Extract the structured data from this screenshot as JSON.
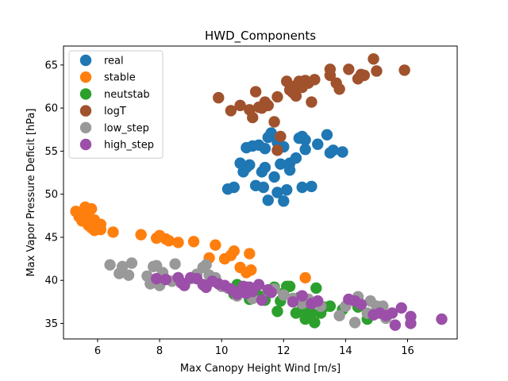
{
  "chart_data": {
    "type": "scatter",
    "title": "HWD_Components",
    "xlabel": "Max Canopy Height Wind [m/s]",
    "ylabel": "Max Vapor Pressure Deficit [hPa]",
    "xlim": [
      4.9,
      17.6
    ],
    "ylim": [
      33.2,
      67.2
    ],
    "xticks": [
      6,
      8,
      10,
      12,
      14,
      16
    ],
    "yticks": [
      35,
      40,
      45,
      50,
      55,
      60,
      65
    ],
    "grid": false,
    "legend_position": "top-left",
    "series": [
      {
        "name": "real",
        "color": "#1f77b4",
        "points": [
          [
            10.2,
            50.6
          ],
          [
            10.4,
            50.8
          ],
          [
            10.6,
            53.6
          ],
          [
            10.7,
            52.6
          ],
          [
            10.8,
            53.1
          ],
          [
            10.8,
            55.4
          ],
          [
            10.9,
            53.4
          ],
          [
            11.0,
            55.6
          ],
          [
            11.1,
            51.0
          ],
          [
            11.2,
            55.7
          ],
          [
            11.3,
            52.6
          ],
          [
            11.35,
            50.8
          ],
          [
            11.4,
            53.1
          ],
          [
            11.4,
            55.3
          ],
          [
            11.5,
            56.6
          ],
          [
            11.5,
            49.3
          ],
          [
            11.6,
            57.1
          ],
          [
            11.7,
            52.0
          ],
          [
            11.8,
            50.2
          ],
          [
            11.8,
            56.0
          ],
          [
            11.9,
            53.5
          ],
          [
            12.0,
            49.2
          ],
          [
            12.0,
            55.5
          ],
          [
            12.1,
            50.5
          ],
          [
            12.2,
            53.6
          ],
          [
            12.2,
            52.8
          ],
          [
            12.4,
            54.2
          ],
          [
            12.5,
            56.5
          ],
          [
            12.6,
            56.7
          ],
          [
            12.6,
            50.8
          ],
          [
            12.7,
            56.3
          ],
          [
            12.7,
            55.2
          ],
          [
            12.9,
            50.9
          ],
          [
            13.1,
            55.8
          ],
          [
            13.4,
            56.9
          ],
          [
            13.5,
            54.8
          ],
          [
            13.6,
            55.1
          ],
          [
            13.9,
            54.9
          ]
        ]
      },
      {
        "name": "stable",
        "color": "#ff7f0e",
        "points": [
          [
            5.3,
            48.0
          ],
          [
            5.4,
            47.4
          ],
          [
            5.5,
            46.9
          ],
          [
            5.6,
            48.5
          ],
          [
            5.7,
            47.6
          ],
          [
            5.7,
            46.4
          ],
          [
            5.8,
            48.3
          ],
          [
            5.8,
            46.1
          ],
          [
            5.9,
            47.0
          ],
          [
            5.9,
            45.8
          ],
          [
            6.0,
            46.2
          ],
          [
            6.1,
            46.5
          ],
          [
            6.1,
            45.9
          ],
          [
            6.5,
            45.6
          ],
          [
            7.4,
            45.3
          ],
          [
            7.9,
            44.9
          ],
          [
            8.0,
            45.2
          ],
          [
            8.2,
            44.8
          ],
          [
            8.3,
            44.6
          ],
          [
            8.6,
            44.4
          ],
          [
            9.1,
            44.5
          ],
          [
            9.6,
            42.6
          ],
          [
            9.8,
            44.1
          ],
          [
            10.1,
            42.5
          ],
          [
            10.3,
            42.9
          ],
          [
            10.4,
            43.4
          ],
          [
            10.6,
            41.5
          ],
          [
            10.8,
            40.9
          ],
          [
            10.9,
            43.1
          ],
          [
            10.95,
            41.2
          ],
          [
            12.7,
            40.3
          ]
        ]
      },
      {
        "name": "neutstab",
        "color": "#2ca02c",
        "points": [
          [
            10.4,
            38.4
          ],
          [
            10.5,
            39.5
          ],
          [
            10.6,
            39.0
          ],
          [
            10.7,
            38.8
          ],
          [
            10.8,
            39.2
          ],
          [
            10.9,
            37.8
          ],
          [
            11.0,
            38.0
          ],
          [
            11.2,
            38.2
          ],
          [
            11.4,
            37.7
          ],
          [
            11.5,
            38.9
          ],
          [
            11.7,
            39.2
          ],
          [
            11.8,
            36.4
          ],
          [
            11.9,
            37.6
          ],
          [
            12.0,
            38.5
          ],
          [
            12.1,
            39.3
          ],
          [
            12.2,
            39.3
          ],
          [
            12.3,
            37.8
          ],
          [
            12.4,
            36.2
          ],
          [
            12.5,
            38.0
          ],
          [
            12.6,
            36.7
          ],
          [
            12.7,
            35.5
          ],
          [
            12.8,
            37.1
          ],
          [
            12.9,
            36.2
          ],
          [
            13.0,
            35.1
          ],
          [
            13.05,
            39.1
          ],
          [
            13.2,
            36.2
          ],
          [
            13.3,
            36.9
          ],
          [
            13.5,
            37.0
          ],
          [
            13.9,
            36.6
          ],
          [
            14.4,
            36.9
          ],
          [
            14.7,
            35.5
          ]
        ]
      },
      {
        "name": "logT",
        "color": "#a0522d",
        "points": [
          [
            9.9,
            61.2
          ],
          [
            10.3,
            59.7
          ],
          [
            10.6,
            60.3
          ],
          [
            10.9,
            59.8
          ],
          [
            11.0,
            58.9
          ],
          [
            11.1,
            61.9
          ],
          [
            11.2,
            60.1
          ],
          [
            11.3,
            60.0
          ],
          [
            11.4,
            60.7
          ],
          [
            11.5,
            60.3
          ],
          [
            11.7,
            58.4
          ],
          [
            11.8,
            61.3
          ],
          [
            11.8,
            55.1
          ],
          [
            11.9,
            56.7
          ],
          [
            12.1,
            63.1
          ],
          [
            12.2,
            62.1
          ],
          [
            12.3,
            61.8
          ],
          [
            12.4,
            62.6
          ],
          [
            12.4,
            61.4
          ],
          [
            12.5,
            63.1
          ],
          [
            12.6,
            62.4
          ],
          [
            12.7,
            63.2
          ],
          [
            12.8,
            62.9
          ],
          [
            12.9,
            60.7
          ],
          [
            13.0,
            63.3
          ],
          [
            13.5,
            64.5
          ],
          [
            13.5,
            63.8
          ],
          [
            13.7,
            62.9
          ],
          [
            13.8,
            62.2
          ],
          [
            14.1,
            64.5
          ],
          [
            14.4,
            63.4
          ],
          [
            14.5,
            63.9
          ],
          [
            14.6,
            63.8
          ],
          [
            14.9,
            65.7
          ],
          [
            15.0,
            64.3
          ],
          [
            15.9,
            64.4
          ]
        ]
      },
      {
        "name": "low_step",
        "color": "#999999",
        "points": [
          [
            6.4,
            41.8
          ],
          [
            6.7,
            40.8
          ],
          [
            6.8,
            41.6
          ],
          [
            7.0,
            40.6
          ],
          [
            7.1,
            42.0
          ],
          [
            7.6,
            40.5
          ],
          [
            7.7,
            39.6
          ],
          [
            7.8,
            41.6
          ],
          [
            7.9,
            41.7
          ],
          [
            8.0,
            39.4
          ],
          [
            8.1,
            40.9
          ],
          [
            8.4,
            39.9
          ],
          [
            8.5,
            41.9
          ],
          [
            8.6,
            40.3
          ],
          [
            8.8,
            39.6
          ],
          [
            9.0,
            40.2
          ],
          [
            9.2,
            40.7
          ],
          [
            9.4,
            41.5
          ],
          [
            9.5,
            41.8
          ],
          [
            9.6,
            40.6
          ],
          [
            9.8,
            40.3
          ],
          [
            10.0,
            39.3
          ],
          [
            10.2,
            39.1
          ],
          [
            10.5,
            38.2
          ],
          [
            10.7,
            38.6
          ],
          [
            11.0,
            37.9
          ],
          [
            11.5,
            38.8
          ],
          [
            11.7,
            39.0
          ],
          [
            12.0,
            38.3
          ],
          [
            12.3,
            37.9
          ],
          [
            12.6,
            37.3
          ],
          [
            12.8,
            37.8
          ],
          [
            13.2,
            37.0
          ],
          [
            13.8,
            35.9
          ],
          [
            14.0,
            37.0
          ],
          [
            14.3,
            35.1
          ],
          [
            14.4,
            38.1
          ],
          [
            14.7,
            36.2
          ],
          [
            14.8,
            37.6
          ],
          [
            15.0,
            37.0
          ],
          [
            15.2,
            37.0
          ],
          [
            15.3,
            35.6
          ]
        ]
      },
      {
        "name": "high_step",
        "color": "#9b4fa8",
        "points": [
          [
            7.9,
            40.2
          ],
          [
            8.2,
            40.1
          ],
          [
            8.6,
            40.3
          ],
          [
            8.7,
            39.7
          ],
          [
            8.8,
            39.4
          ],
          [
            9.0,
            40.3
          ],
          [
            9.2,
            40.2
          ],
          [
            9.4,
            39.5
          ],
          [
            9.5,
            39.2
          ],
          [
            9.7,
            39.9
          ],
          [
            9.9,
            39.6
          ],
          [
            10.1,
            39.4
          ],
          [
            10.3,
            39.0
          ],
          [
            10.4,
            38.7
          ],
          [
            10.5,
            38.4
          ],
          [
            10.7,
            39.3
          ],
          [
            10.8,
            38.5
          ],
          [
            10.9,
            39.2
          ],
          [
            11.0,
            38.7
          ],
          [
            11.2,
            39.5
          ],
          [
            11.3,
            37.7
          ],
          [
            11.5,
            38.9
          ],
          [
            11.6,
            38.6
          ],
          [
            12.3,
            37.5
          ],
          [
            12.6,
            38.2
          ],
          [
            12.9,
            37.3
          ],
          [
            13.1,
            37.6
          ],
          [
            14.1,
            37.8
          ],
          [
            14.3,
            37.6
          ],
          [
            14.5,
            37.2
          ],
          [
            14.9,
            36.0
          ],
          [
            15.1,
            36.2
          ],
          [
            15.3,
            35.9
          ],
          [
            15.5,
            36.2
          ],
          [
            15.6,
            34.8
          ],
          [
            15.8,
            36.8
          ],
          [
            16.1,
            35.8
          ],
          [
            16.1,
            35.0
          ],
          [
            17.1,
            35.5
          ]
        ]
      }
    ]
  }
}
